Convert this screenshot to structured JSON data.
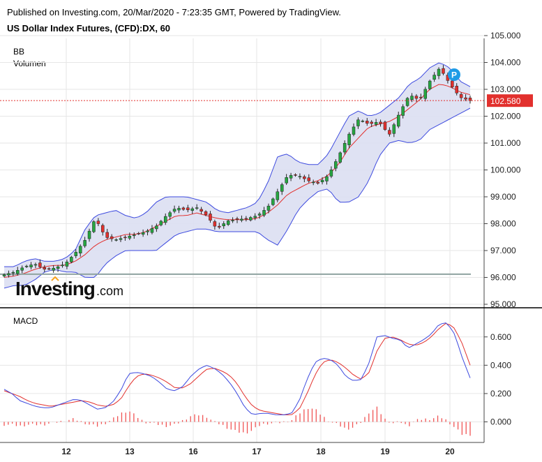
{
  "header": {
    "published": "Published on Investing.com, 20/Mar/2020 - 7:23:35 GMT, Powered by TradingView.",
    "title": "US Dollar Index Futures, (CFD):DX, 60"
  },
  "indicators": {
    "bb": "BB",
    "volume": "Volumen",
    "macd": "MACD"
  },
  "marker": {
    "label": "P"
  },
  "watermark": {
    "main": "Investing",
    "suffix": ".com"
  },
  "colors": {
    "up": "#26a641",
    "down": "#e2302d",
    "bb_band": "#3d4adf",
    "bb_fill": "#dcdff2",
    "bb_basis": "#e2302d",
    "macd": "#3d4adf",
    "signal": "#e2302d",
    "hist": "#f05454",
    "price_line": "#e2302d",
    "grid": "#e6e6e6"
  },
  "chart_data": [
    {
      "type": "candlestick",
      "title": "US Dollar Index Futures, (CFD):DX, 60",
      "x_ticks": [
        "12",
        "13",
        "16",
        "17",
        "18",
        "19",
        "20"
      ],
      "ylim": [
        95.0,
        105.0
      ],
      "y_ticks": [
        "95.000",
        "96.000",
        "97.000",
        "98.000",
        "99.000",
        "100.000",
        "101.000",
        "102.000",
        "103.000",
        "104.000",
        "105.000"
      ],
      "last_price": 102.58,
      "last_price_label": "102.580",
      "volume_level": 96.12,
      "anchors": [
        96.1,
        96.2,
        96.4,
        96.5,
        96.3,
        96.35,
        96.5,
        96.9,
        97.4,
        98.2,
        97.5,
        97.4,
        97.5,
        97.6,
        97.7,
        97.9,
        98.3,
        98.6,
        98.5,
        98.6,
        98.3,
        97.8,
        98.1,
        98.15,
        98.2,
        98.3,
        98.6,
        99.2,
        99.8,
        99.8,
        99.6,
        99.5,
        99.8,
        100.5,
        101.3,
        101.9,
        101.7,
        101.8,
        101.3,
        102.1,
        102.8,
        102.6,
        103.3,
        103.8,
        103.2,
        102.7,
        102.58
      ],
      "bb_upper_anchors": [
        96.4,
        96.4,
        96.6,
        96.7,
        96.6,
        96.6,
        96.7,
        97.0,
        97.8,
        98.3,
        98.4,
        98.5,
        98.3,
        98.2,
        98.4,
        98.8,
        99.0,
        99.0,
        99.0,
        98.9,
        98.8,
        98.5,
        98.4,
        98.5,
        98.6,
        98.8,
        99.5,
        100.5,
        100.6,
        100.3,
        100.2,
        100.2,
        100.6,
        101.3,
        102.0,
        102.2,
        102.0,
        102.1,
        102.4,
        102.7,
        103.2,
        103.4,
        103.8,
        104.0,
        103.8,
        103.3,
        103.1
      ],
      "bb_basis_anchors": [
        96.0,
        96.05,
        96.15,
        96.3,
        96.4,
        96.45,
        96.45,
        96.6,
        96.85,
        97.2,
        97.4,
        97.5,
        97.6,
        97.6,
        97.7,
        97.9,
        98.1,
        98.3,
        98.3,
        98.4,
        98.3,
        98.2,
        98.15,
        98.15,
        98.15,
        98.2,
        98.4,
        98.7,
        99.1,
        99.3,
        99.5,
        99.6,
        99.8,
        100.2,
        100.8,
        101.2,
        101.6,
        101.7,
        101.8,
        102.0,
        102.3,
        102.6,
        103.0,
        103.2,
        103.1,
        102.9,
        102.8
      ],
      "bb_lower_anchors": [
        95.6,
        95.7,
        95.7,
        95.9,
        96.2,
        96.3,
        96.2,
        96.2,
        96.0,
        96.0,
        96.5,
        96.8,
        97.0,
        97.0,
        97.0,
        97.0,
        97.3,
        97.6,
        97.7,
        97.8,
        97.8,
        97.7,
        97.7,
        97.7,
        97.7,
        97.7,
        97.4,
        97.2,
        97.8,
        98.5,
        98.9,
        99.2,
        99.3,
        98.8,
        98.8,
        99.0,
        99.6,
        100.5,
        101.0,
        101.1,
        101.0,
        101.1,
        101.5,
        101.7,
        101.9,
        102.1,
        102.3
      ]
    },
    {
      "type": "line",
      "title": "MACD",
      "ylim": [
        -0.15,
        0.73
      ],
      "y_ticks": [
        "0.000",
        "0.200",
        "0.400",
        "0.600"
      ],
      "macd_anchors": [
        0.23,
        0.2,
        0.15,
        0.13,
        0.11,
        0.1,
        0.1,
        0.12,
        0.14,
        0.16,
        0.15,
        0.12,
        0.09,
        0.1,
        0.14,
        0.22,
        0.34,
        0.35,
        0.34,
        0.32,
        0.28,
        0.23,
        0.22,
        0.25,
        0.32,
        0.37,
        0.4,
        0.38,
        0.34,
        0.28,
        0.2,
        0.1,
        0.05,
        0.06,
        0.06,
        0.05,
        0.05,
        0.06,
        0.15,
        0.3,
        0.42,
        0.45,
        0.44,
        0.4,
        0.32,
        0.29,
        0.3,
        0.42,
        0.6,
        0.61,
        0.59,
        0.58,
        0.52,
        0.55,
        0.58,
        0.62,
        0.69,
        0.7,
        0.62,
        0.45,
        0.31
      ],
      "signal_anchors": [
        0.22,
        0.2,
        0.18,
        0.15,
        0.13,
        0.12,
        0.11,
        0.12,
        0.13,
        0.14,
        0.15,
        0.14,
        0.12,
        0.11,
        0.12,
        0.16,
        0.25,
        0.32,
        0.34,
        0.33,
        0.31,
        0.28,
        0.24,
        0.24,
        0.27,
        0.32,
        0.37,
        0.38,
        0.36,
        0.33,
        0.27,
        0.18,
        0.11,
        0.08,
        0.07,
        0.06,
        0.05,
        0.05,
        0.09,
        0.2,
        0.33,
        0.42,
        0.44,
        0.42,
        0.38,
        0.33,
        0.3,
        0.35,
        0.5,
        0.59,
        0.6,
        0.58,
        0.55,
        0.54,
        0.56,
        0.6,
        0.66,
        0.7,
        0.66,
        0.55,
        0.4
      ],
      "hist_anchors": [
        -0.02,
        -0.02,
        -0.03,
        -0.02,
        -0.02,
        -0.02,
        -0.01,
        0.0,
        0.01,
        0.02,
        0.0,
        -0.02,
        -0.03,
        -0.01,
        0.02,
        0.06,
        0.08,
        0.04,
        0.0,
        -0.01,
        -0.02,
        -0.03,
        -0.02,
        0.01,
        0.04,
        0.05,
        0.04,
        0.0,
        -0.02,
        -0.05,
        -0.07,
        -0.08,
        -0.06,
        -0.02,
        -0.01,
        -0.01,
        0.0,
        0.01,
        0.06,
        0.1,
        0.09,
        0.04,
        0.0,
        -0.02,
        -0.05,
        -0.04,
        0.0,
        0.07,
        0.1,
        0.02,
        -0.01,
        0.0,
        -0.03,
        0.01,
        0.02,
        0.02,
        0.04,
        0.01,
        -0.04,
        -0.09,
        -0.09
      ]
    }
  ]
}
